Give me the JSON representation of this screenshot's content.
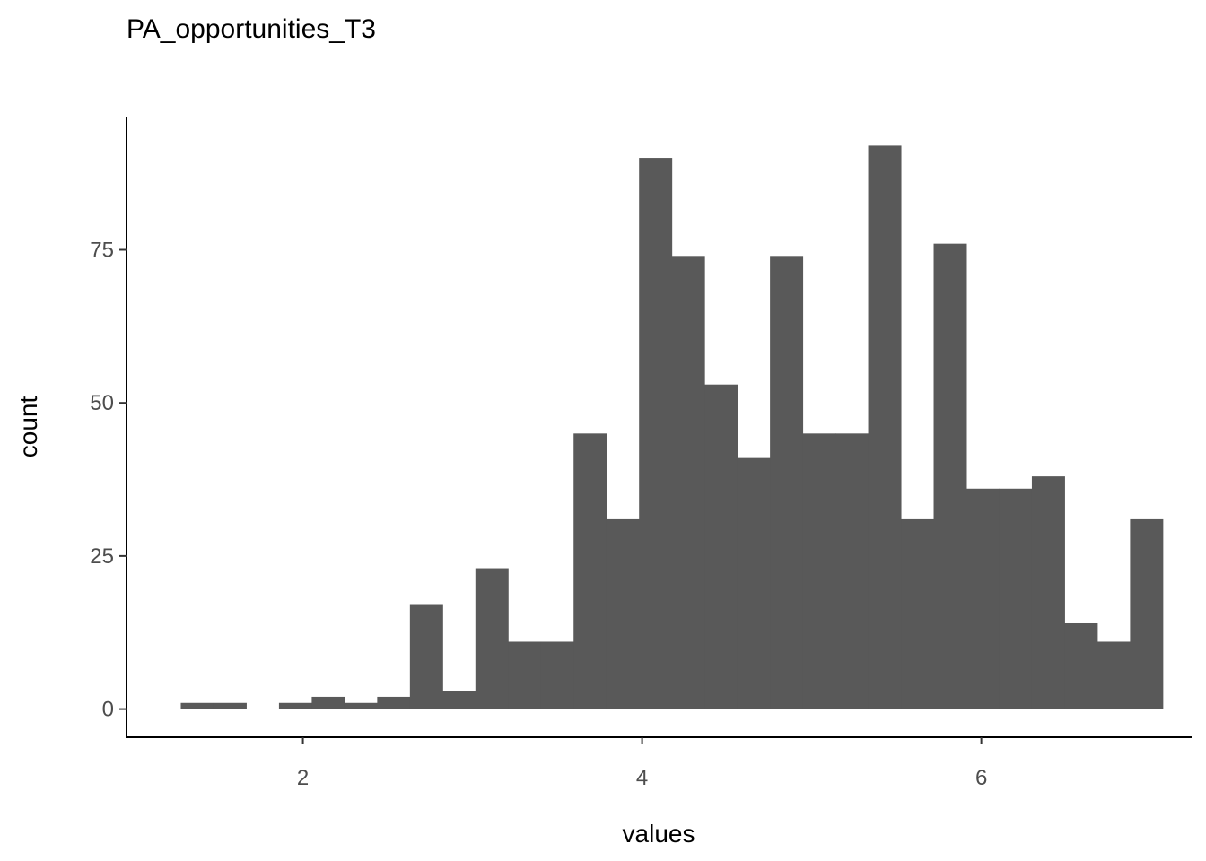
{
  "chart_data": {
    "type": "bar",
    "title": "PA_opportunities_T3",
    "xlabel": "values",
    "ylabel": "count",
    "xlim": [
      0.96,
      7.24
    ],
    "ylim": [
      -4.6,
      96.6
    ],
    "x_ticks": [
      2,
      4,
      6
    ],
    "y_ticks": [
      0,
      25,
      50,
      75
    ],
    "grid": false,
    "legend": "none",
    "bar_color": "#595959",
    "bin_width": 0.193,
    "bins": [
      {
        "x0": 1.28,
        "x1": 1.473,
        "count": 1
      },
      {
        "x0": 1.473,
        "x1": 1.666,
        "count": 1
      },
      {
        "x0": 1.666,
        "x1": 1.859,
        "count": 0
      },
      {
        "x0": 1.859,
        "x1": 2.052,
        "count": 1
      },
      {
        "x0": 2.052,
        "x1": 2.245,
        "count": 2
      },
      {
        "x0": 2.245,
        "x1": 2.438,
        "count": 1
      },
      {
        "x0": 2.438,
        "x1": 2.631,
        "count": 2
      },
      {
        "x0": 2.631,
        "x1": 2.824,
        "count": 17
      },
      {
        "x0": 2.824,
        "x1": 3.017,
        "count": 3
      },
      {
        "x0": 3.017,
        "x1": 3.21,
        "count": 23
      },
      {
        "x0": 3.21,
        "x1": 3.403,
        "count": 11
      },
      {
        "x0": 3.403,
        "x1": 3.596,
        "count": 11
      },
      {
        "x0": 3.596,
        "x1": 3.789,
        "count": 45
      },
      {
        "x0": 3.789,
        "x1": 3.982,
        "count": 31
      },
      {
        "x0": 3.982,
        "x1": 4.175,
        "count": 90
      },
      {
        "x0": 4.175,
        "x1": 4.368,
        "count": 74
      },
      {
        "x0": 4.368,
        "x1": 4.561,
        "count": 53
      },
      {
        "x0": 4.561,
        "x1": 4.754,
        "count": 41
      },
      {
        "x0": 4.754,
        "x1": 4.947,
        "count": 74
      },
      {
        "x0": 4.947,
        "x1": 5.14,
        "count": 45
      },
      {
        "x0": 5.14,
        "x1": 5.333,
        "count": 45
      },
      {
        "x0": 5.333,
        "x1": 5.526,
        "count": 92
      },
      {
        "x0": 5.526,
        "x1": 5.719,
        "count": 31
      },
      {
        "x0": 5.719,
        "x1": 5.912,
        "count": 76
      },
      {
        "x0": 5.912,
        "x1": 6.105,
        "count": 36
      },
      {
        "x0": 6.105,
        "x1": 6.298,
        "count": 36
      },
      {
        "x0": 6.298,
        "x1": 6.491,
        "count": 38
      },
      {
        "x0": 6.491,
        "x1": 6.684,
        "count": 14
      },
      {
        "x0": 6.684,
        "x1": 6.877,
        "count": 11
      },
      {
        "x0": 6.877,
        "x1": 7.07,
        "count": 31
      }
    ]
  }
}
